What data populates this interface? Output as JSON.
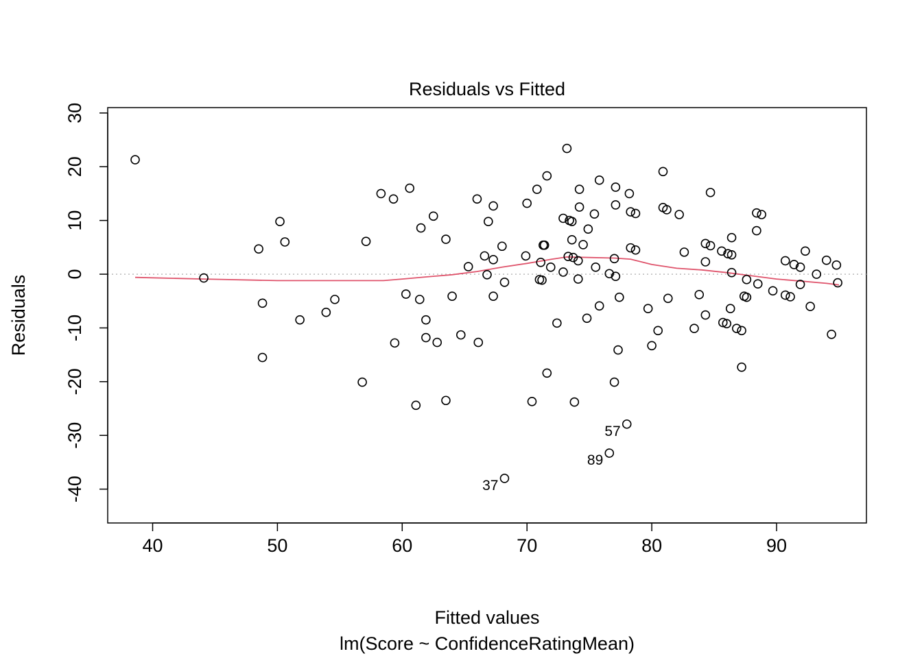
{
  "colors": {
    "points": "#000000",
    "smooth": "#DF536B",
    "zero_line": "#BEBEBE",
    "frame": "#000000"
  },
  "chart_data": {
    "type": "scatter",
    "title": "Residuals vs Fitted",
    "xlabel": "Fitted values",
    "subtitle": "lm(Score ~ ConfidenceRatingMean)",
    "ylabel": "Residuals",
    "xlim": [
      36.4,
      97.2
    ],
    "ylim": [
      -46.3,
      31.0
    ],
    "xticks": [
      40,
      50,
      60,
      70,
      80,
      90
    ],
    "yticks": [
      -40,
      -30,
      -20,
      -10,
      0,
      10,
      20,
      30
    ],
    "points": [
      [
        38.6,
        21.3
      ],
      [
        44.1,
        -0.7
      ],
      [
        48.5,
        4.7
      ],
      [
        48.8,
        -5.4
      ],
      [
        48.8,
        -15.5
      ],
      [
        50.2,
        9.8
      ],
      [
        50.6,
        6.0
      ],
      [
        51.8,
        -8.5
      ],
      [
        53.9,
        -7.1
      ],
      [
        54.6,
        -4.7
      ],
      [
        56.8,
        -20.1
      ],
      [
        57.1,
        6.1
      ],
      [
        58.3,
        15.0
      ],
      [
        59.3,
        14.0
      ],
      [
        59.4,
        -12.8
      ],
      [
        60.3,
        -3.7
      ],
      [
        60.6,
        16.0
      ],
      [
        61.1,
        -24.4
      ],
      [
        61.4,
        -4.7
      ],
      [
        61.5,
        8.6
      ],
      [
        61.9,
        -8.5
      ],
      [
        61.9,
        -11.8
      ],
      [
        62.5,
        10.8
      ],
      [
        62.8,
        -12.7
      ],
      [
        63.5,
        6.5
      ],
      [
        63.5,
        -23.5
      ],
      [
        64.0,
        -4.1
      ],
      [
        64.7,
        -11.3
      ],
      [
        65.3,
        1.4
      ],
      [
        66.0,
        14.0
      ],
      [
        66.1,
        -12.7
      ],
      [
        66.6,
        3.4
      ],
      [
        66.8,
        -0.1
      ],
      [
        66.9,
        9.8
      ],
      [
        67.3,
        2.7
      ],
      [
        67.3,
        12.7
      ],
      [
        67.3,
        -4.1
      ],
      [
        68.0,
        5.2
      ],
      [
        68.2,
        -1.5
      ],
      [
        69.9,
        3.4
      ],
      [
        70.0,
        13.2
      ],
      [
        70.4,
        -23.7
      ],
      [
        70.8,
        15.8
      ],
      [
        71.0,
        -1.0
      ],
      [
        71.1,
        2.2
      ],
      [
        71.2,
        -1.1
      ],
      [
        71.3,
        5.4
      ],
      [
        71.4,
        5.4
      ],
      [
        71.6,
        18.3
      ],
      [
        71.6,
        -18.4
      ],
      [
        71.9,
        1.3
      ],
      [
        72.4,
        -9.1
      ],
      [
        72.9,
        10.4
      ],
      [
        72.9,
        0.4
      ],
      [
        73.2,
        23.4
      ],
      [
        73.3,
        3.3
      ],
      [
        73.4,
        10.0
      ],
      [
        73.6,
        9.8
      ],
      [
        73.6,
        6.4
      ],
      [
        73.7,
        3.1
      ],
      [
        73.8,
        -23.8
      ],
      [
        74.1,
        2.5
      ],
      [
        74.1,
        -0.9
      ],
      [
        74.2,
        15.8
      ],
      [
        74.2,
        12.5
      ],
      [
        74.5,
        5.5
      ],
      [
        74.8,
        -8.2
      ],
      [
        74.9,
        8.4
      ],
      [
        75.4,
        11.2
      ],
      [
        75.5,
        1.3
      ],
      [
        75.8,
        17.5
      ],
      [
        75.8,
        -5.9
      ],
      [
        76.6,
        0.1
      ],
      [
        77.0,
        -20.1
      ],
      [
        77.0,
        2.9
      ],
      [
        77.1,
        12.9
      ],
      [
        77.1,
        16.2
      ],
      [
        77.1,
        -0.4
      ],
      [
        77.3,
        -14.1
      ],
      [
        77.4,
        -4.3
      ],
      [
        78.2,
        15.0
      ],
      [
        78.3,
        11.6
      ],
      [
        78.3,
        4.9
      ],
      [
        78.7,
        11.3
      ],
      [
        78.7,
        4.5
      ],
      [
        79.7,
        -6.4
      ],
      [
        80.0,
        -13.3
      ],
      [
        80.5,
        -10.5
      ],
      [
        80.9,
        19.1
      ],
      [
        80.9,
        12.4
      ],
      [
        81.2,
        12.0
      ],
      [
        81.3,
        -4.5
      ],
      [
        82.2,
        11.1
      ],
      [
        82.6,
        4.1
      ],
      [
        83.4,
        -10.1
      ],
      [
        83.8,
        -3.8
      ],
      [
        84.3,
        5.7
      ],
      [
        84.3,
        2.3
      ],
      [
        84.3,
        -7.6
      ],
      [
        84.7,
        5.3
      ],
      [
        84.7,
        15.2
      ],
      [
        85.6,
        4.3
      ],
      [
        85.7,
        -9.0
      ],
      [
        86.0,
        -9.2
      ],
      [
        86.1,
        3.8
      ],
      [
        86.3,
        -6.4
      ],
      [
        86.4,
        3.6
      ],
      [
        86.4,
        6.8
      ],
      [
        86.4,
        0.3
      ],
      [
        86.8,
        -10.1
      ],
      [
        87.2,
        -10.5
      ],
      [
        87.2,
        -17.3
      ],
      [
        87.4,
        -4.1
      ],
      [
        87.6,
        -4.3
      ],
      [
        87.6,
        -1.0
      ],
      [
        88.4,
        11.4
      ],
      [
        88.4,
        8.1
      ],
      [
        88.5,
        -1.8
      ],
      [
        88.8,
        11.1
      ],
      [
        89.7,
        -3.1
      ],
      [
        90.7,
        2.5
      ],
      [
        90.7,
        -3.9
      ],
      [
        91.1,
        -4.2
      ],
      [
        91.4,
        1.8
      ],
      [
        91.9,
        1.3
      ],
      [
        91.9,
        -1.9
      ],
      [
        92.3,
        4.3
      ],
      [
        92.7,
        -6.0
      ],
      [
        93.2,
        0.0
      ],
      [
        94.0,
        2.6
      ],
      [
        94.4,
        -11.2
      ],
      [
        94.8,
        1.7
      ],
      [
        94.9,
        -1.6
      ],
      [
        68.2,
        -38.0
      ],
      [
        76.6,
        -33.3
      ],
      [
        78.0,
        -27.9
      ]
    ],
    "labeled_points": [
      {
        "label": "37",
        "x": 68.2,
        "y": -38.0
      },
      {
        "label": "89",
        "x": 76.6,
        "y": -33.3
      },
      {
        "label": "57",
        "x": 78.0,
        "y": -27.9
      }
    ],
    "smooth_line": [
      [
        38.6,
        -0.6
      ],
      [
        44.1,
        -0.9
      ],
      [
        50.0,
        -1.2
      ],
      [
        55.0,
        -1.2
      ],
      [
        58.5,
        -1.2
      ],
      [
        60.0,
        -0.9
      ],
      [
        62.0,
        -0.5
      ],
      [
        64.0,
        -0.1
      ],
      [
        66.0,
        0.5
      ],
      [
        68.0,
        1.3
      ],
      [
        70.0,
        2.0
      ],
      [
        72.0,
        2.8
      ],
      [
        73.2,
        3.2
      ],
      [
        75.0,
        3.1
      ],
      [
        77.0,
        3.0
      ],
      [
        78.3,
        2.8
      ],
      [
        80.0,
        1.8
      ],
      [
        82.0,
        1.1
      ],
      [
        84.0,
        0.8
      ],
      [
        86.0,
        0.3
      ],
      [
        88.0,
        -0.3
      ],
      [
        90.0,
        -0.9
      ],
      [
        92.0,
        -1.3
      ],
      [
        94.0,
        -1.7
      ],
      [
        95.0,
        -2.0
      ]
    ],
    "reference_line_y": 0
  }
}
